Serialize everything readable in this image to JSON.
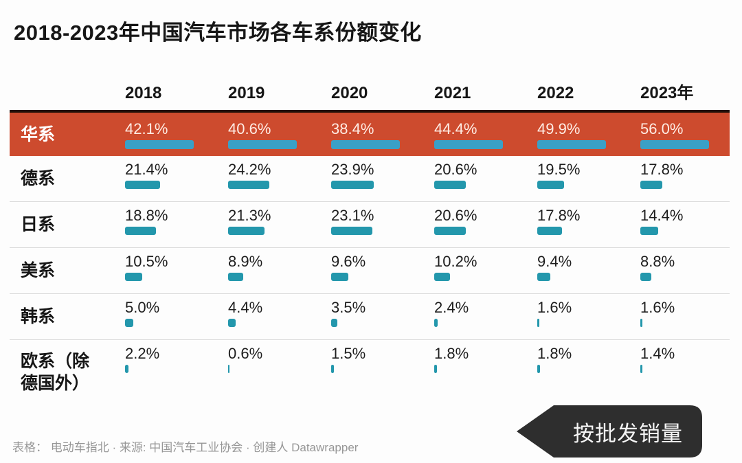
{
  "chart_data": {
    "type": "table",
    "title": "2018-2023年中国汽车市场各车系份额变化",
    "categories": [
      "2018",
      "2019",
      "2020",
      "2021",
      "2022",
      "2023年"
    ],
    "series": [
      {
        "name": "华系",
        "values": [
          42.1,
          40.6,
          38.4,
          44.4,
          49.9,
          56.0
        ]
      },
      {
        "name": "德系",
        "values": [
          21.4,
          24.2,
          23.9,
          20.6,
          19.5,
          17.8
        ]
      },
      {
        "name": "日系",
        "values": [
          18.8,
          21.3,
          23.1,
          20.6,
          17.8,
          14.4
        ]
      },
      {
        "name": "美系",
        "values": [
          10.5,
          8.9,
          9.6,
          10.2,
          9.4,
          8.8
        ]
      },
      {
        "name": "韩系",
        "values": [
          5.0,
          4.4,
          3.5,
          2.4,
          1.6,
          1.6
        ]
      },
      {
        "name": "欧系（除德国外）",
        "values": [
          2.2,
          0.6,
          1.5,
          1.8,
          1.8,
          1.4
        ]
      }
    ],
    "unit": "%",
    "legend_position": "none",
    "grid": "row separators only",
    "bar_scale_note": "in-cell bars are proportional to value relative to the column maximum (华系 row = full-length bar)"
  },
  "highlight_series": "华系",
  "footer": {
    "text": "表格：  电动车指北 · 来源: 中国汽车工业协会 · 创建人 Datawrapper"
  },
  "badge": {
    "label": "按批发销量"
  },
  "colors": {
    "page_bg": "#fdfdfd",
    "text": "#161616",
    "value_text": "#1d1d1d",
    "separator": "#dcdcdc",
    "highlight_bg": "#cd4b2e",
    "highlight_top_border": "#231008",
    "highlight_text": "#ffece4",
    "bar": "#2397ac",
    "bar_on_highlight": "#3aa0c6",
    "footer_text": "#979797",
    "badge_bg": "#2e2e2e",
    "badge_text": "#f5f5f5"
  }
}
